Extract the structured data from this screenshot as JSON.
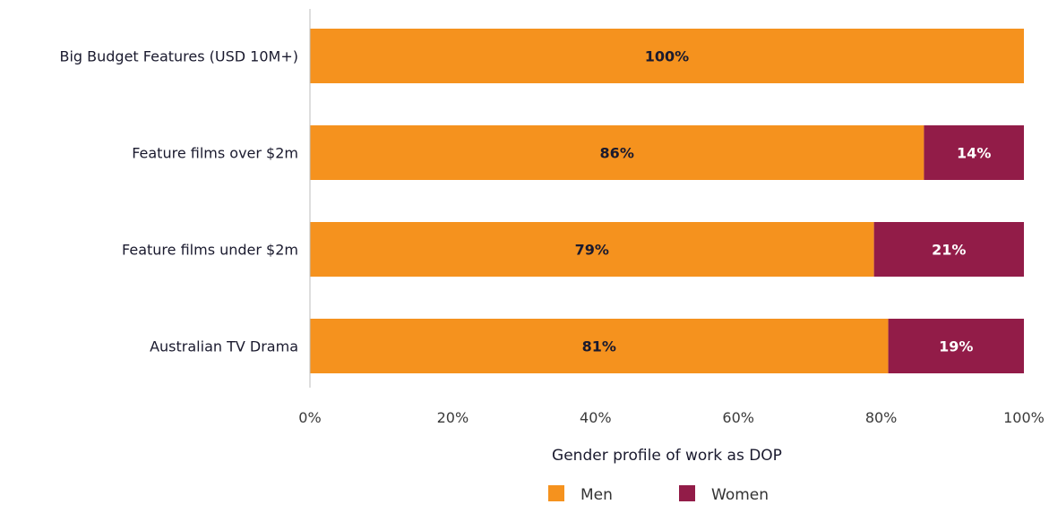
{
  "chart_data": {
    "type": "bar",
    "orientation": "horizontal",
    "stacked": true,
    "categories": [
      "Big Budget Features (USD 10M+)",
      "Feature films over $2m",
      "Feature films under $2m",
      "Australian TV Drama"
    ],
    "series": [
      {
        "name": "Men",
        "color": "#f5921e",
        "label_color": "#1a1a2e",
        "values": [
          100,
          86,
          79,
          81
        ],
        "labels": [
          "100%",
          "86%",
          "79%",
          "81%"
        ]
      },
      {
        "name": "Women",
        "color": "#921c48",
        "label_color": "#ffffff",
        "values": [
          0,
          14,
          21,
          19
        ],
        "labels": [
          "",
          "14%",
          "21%",
          "19%"
        ]
      }
    ],
    "xlim": [
      0,
      100
    ],
    "x_ticks": [
      "0%",
      "20%",
      "40%",
      "60%",
      "80%",
      "100%"
    ],
    "xlabel": "Gender profile of work as DOP",
    "ylabel": "",
    "grid": false,
    "legend_position": "bottom"
  }
}
